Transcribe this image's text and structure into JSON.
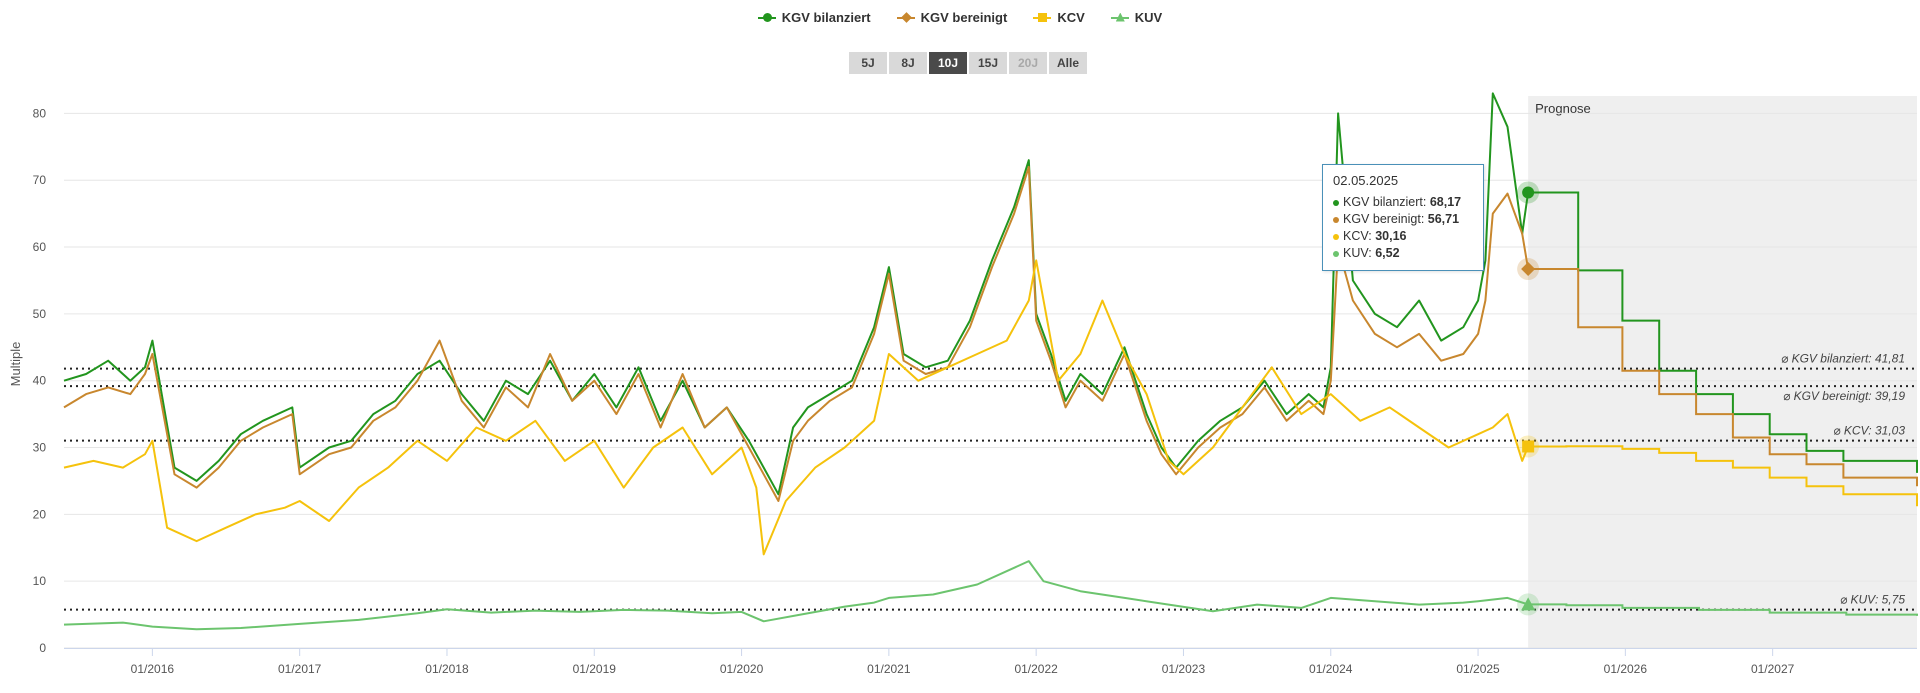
{
  "colors": {
    "kgv_bilanziert": "#22951e",
    "kgv_bereinigt": "#c8872e",
    "kcv": "#f5c20c",
    "kuv": "#6cc46e",
    "forecast_bg": "#efefef",
    "grid": "#e6e6e6"
  },
  "legend": [
    {
      "label": "KGV bilanziert",
      "series": "kgv_bilanziert",
      "marker": "circle"
    },
    {
      "label": "KGV bereinigt",
      "series": "kgv_bereinigt",
      "marker": "diamond"
    },
    {
      "label": "KCV",
      "series": "kcv",
      "marker": "square"
    },
    {
      "label": "KUV",
      "series": "kuv",
      "marker": "triangle"
    }
  ],
  "range_buttons": [
    {
      "label": "5J",
      "state": "normal"
    },
    {
      "label": "8J",
      "state": "normal"
    },
    {
      "label": "10J",
      "state": "active"
    },
    {
      "label": "15J",
      "state": "normal"
    },
    {
      "label": "20J",
      "state": "disabled"
    },
    {
      "label": "Alle",
      "state": "normal"
    }
  ],
  "tooltip": {
    "date": "02.05.2025",
    "rows": [
      {
        "label": "KGV bilanziert: ",
        "value": "68,17",
        "series": "kgv_bilanziert"
      },
      {
        "label": "KGV bereinigt: ",
        "value": "56,71",
        "series": "kgv_bereinigt"
      },
      {
        "label": "KCV: ",
        "value": "30,16",
        "series": "kcv"
      },
      {
        "label": "KUV: ",
        "value": "6,52",
        "series": "kuv"
      }
    ]
  },
  "chart_data": {
    "type": "line",
    "ylabel": "Multiple",
    "ylim": [
      0,
      85
    ],
    "yticks": [
      0,
      10,
      20,
      30,
      40,
      50,
      60,
      70,
      80
    ],
    "xlim": [
      2015.4,
      2027.98
    ],
    "xticks": [
      {
        "x": 2016,
        "label": "01/2016"
      },
      {
        "x": 2017,
        "label": "01/2017"
      },
      {
        "x": 2018,
        "label": "01/2018"
      },
      {
        "x": 2019,
        "label": "01/2019"
      },
      {
        "x": 2020,
        "label": "01/2020"
      },
      {
        "x": 2021,
        "label": "01/2021"
      },
      {
        "x": 2022,
        "label": "01/2022"
      },
      {
        "x": 2023,
        "label": "01/2023"
      },
      {
        "x": 2024,
        "label": "01/2024"
      },
      {
        "x": 2025,
        "label": "01/2025"
      },
      {
        "x": 2026,
        "label": "01/2026"
      },
      {
        "x": 2027,
        "label": "01/2027"
      }
    ],
    "forecast_start": 2025.34,
    "forecast_label": "Prognose",
    "hover_x": 2025.34,
    "series": [
      {
        "key": "kgv_bilanziert",
        "name": "KGV bilanziert",
        "x": [
          2015.4,
          2015.55,
          2015.7,
          2015.85,
          2015.95,
          2016.0,
          2016.15,
          2016.3,
          2016.45,
          2016.6,
          2016.75,
          2016.95,
          2017.0,
          2017.2,
          2017.35,
          2017.5,
          2017.65,
          2017.8,
          2017.95,
          2018.1,
          2018.25,
          2018.4,
          2018.55,
          2018.7,
          2018.85,
          2019.0,
          2019.15,
          2019.3,
          2019.45,
          2019.6,
          2019.75,
          2019.9,
          2020.05,
          2020.15,
          2020.25,
          2020.35,
          2020.45,
          2020.6,
          2020.75,
          2020.9,
          2021.0,
          2021.1,
          2021.25,
          2021.4,
          2021.55,
          2021.7,
          2021.85,
          2021.95,
          2022.0,
          2022.1,
          2022.2,
          2022.3,
          2022.45,
          2022.6,
          2022.75,
          2022.85,
          2022.95,
          2023.1,
          2023.25,
          2023.4,
          2023.55,
          2023.7,
          2023.85,
          2023.95,
          2024.0,
          2024.05,
          2024.15,
          2024.3,
          2024.45,
          2024.6,
          2024.75,
          2024.9,
          2025.0,
          2025.05,
          2025.1,
          2025.2,
          2025.3,
          2025.34
        ],
        "y": [
          40,
          41,
          43,
          40,
          42,
          46,
          27,
          25,
          28,
          32,
          34,
          36,
          27,
          30,
          31,
          35,
          37,
          41,
          43,
          38,
          34,
          40,
          38,
          43,
          37,
          41,
          36,
          42,
          34,
          40,
          33,
          36,
          31,
          27,
          23,
          33,
          36,
          38,
          40,
          48,
          57,
          44,
          42,
          43,
          49,
          58,
          66,
          73,
          50,
          44,
          37,
          41,
          38,
          45,
          35,
          30,
          27,
          31,
          34,
          36,
          40,
          35,
          38,
          36,
          42,
          80,
          55,
          50,
          48,
          52,
          46,
          48,
          52,
          58,
          83,
          78,
          62,
          68.17
        ]
      },
      {
        "key": "kgv_bereinigt",
        "name": "KGV bereinigt",
        "x": [
          2015.4,
          2015.55,
          2015.7,
          2015.85,
          2015.95,
          2016.0,
          2016.15,
          2016.3,
          2016.45,
          2016.6,
          2016.75,
          2016.95,
          2017.0,
          2017.2,
          2017.35,
          2017.5,
          2017.65,
          2017.8,
          2017.95,
          2018.1,
          2018.25,
          2018.4,
          2018.55,
          2018.7,
          2018.85,
          2019.0,
          2019.15,
          2019.3,
          2019.45,
          2019.6,
          2019.75,
          2019.9,
          2020.05,
          2020.15,
          2020.25,
          2020.35,
          2020.45,
          2020.6,
          2020.75,
          2020.9,
          2021.0,
          2021.1,
          2021.25,
          2021.4,
          2021.55,
          2021.7,
          2021.85,
          2021.95,
          2022.0,
          2022.1,
          2022.2,
          2022.3,
          2022.45,
          2022.6,
          2022.75,
          2022.85,
          2022.95,
          2023.1,
          2023.25,
          2023.4,
          2023.55,
          2023.7,
          2023.85,
          2023.95,
          2024.0,
          2024.05,
          2024.15,
          2024.3,
          2024.45,
          2024.6,
          2024.75,
          2024.9,
          2025.0,
          2025.05,
          2025.1,
          2025.2,
          2025.3,
          2025.34
        ],
        "y": [
          36,
          38,
          39,
          38,
          41,
          44,
          26,
          24,
          27,
          31,
          33,
          35,
          26,
          29,
          30,
          34,
          36,
          40,
          46,
          37,
          33,
          39,
          36,
          44,
          37,
          40,
          35,
          41,
          33,
          41,
          33,
          36,
          30,
          26,
          22,
          31,
          34,
          37,
          39,
          47,
          56,
          43,
          41,
          42,
          48,
          57,
          65,
          72,
          49,
          43,
          36,
          40,
          37,
          44,
          34,
          29,
          26,
          30,
          33,
          35,
          39,
          34,
          37,
          35,
          40,
          60,
          52,
          47,
          45,
          47,
          43,
          44,
          47,
          52,
          65,
          68,
          62,
          56.71
        ]
      },
      {
        "key": "kcv",
        "name": "KCV",
        "x": [
          2015.4,
          2015.6,
          2015.8,
          2015.95,
          2016.0,
          2016.1,
          2016.3,
          2016.5,
          2016.7,
          2016.9,
          2017.0,
          2017.2,
          2017.4,
          2017.6,
          2017.8,
          2018.0,
          2018.2,
          2018.4,
          2018.6,
          2018.8,
          2019.0,
          2019.2,
          2019.4,
          2019.6,
          2019.8,
          2020.0,
          2020.1,
          2020.15,
          2020.3,
          2020.5,
          2020.7,
          2020.9,
          2021.0,
          2021.2,
          2021.4,
          2021.6,
          2021.8,
          2021.95,
          2022.0,
          2022.15,
          2022.3,
          2022.45,
          2022.6,
          2022.75,
          2022.9,
          2023.0,
          2023.2,
          2023.4,
          2023.6,
          2023.8,
          2024.0,
          2024.2,
          2024.4,
          2024.6,
          2024.8,
          2025.0,
          2025.1,
          2025.2,
          2025.3,
          2025.34
        ],
        "y": [
          27,
          28,
          27,
          29,
          31,
          18,
          16,
          18,
          20,
          21,
          22,
          19,
          24,
          27,
          31,
          28,
          33,
          31,
          34,
          28,
          31,
          24,
          30,
          33,
          26,
          30,
          24,
          14,
          22,
          27,
          30,
          34,
          44,
          40,
          42,
          44,
          46,
          52,
          58,
          40,
          44,
          52,
          44,
          38,
          28,
          26,
          30,
          36,
          42,
          35,
          38,
          34,
          36,
          33,
          30,
          32,
          33,
          35,
          28,
          30.16
        ]
      },
      {
        "key": "kuv",
        "name": "KUV",
        "x": [
          2015.4,
          2015.8,
          2016.0,
          2016.3,
          2016.6,
          2017.0,
          2017.4,
          2017.8,
          2018.0,
          2018.3,
          2018.6,
          2018.9,
          2019.2,
          2019.5,
          2019.8,
          2020.0,
          2020.15,
          2020.4,
          2020.7,
          2020.9,
          2021.0,
          2021.3,
          2021.6,
          2021.85,
          2021.95,
          2022.05,
          2022.3,
          2022.6,
          2022.9,
          2023.2,
          2023.5,
          2023.8,
          2024.0,
          2024.3,
          2024.6,
          2024.9,
          2025.0,
          2025.2,
          2025.34
        ],
        "y": [
          3.5,
          3.8,
          3.2,
          2.8,
          3.0,
          3.6,
          4.2,
          5.2,
          5.8,
          5.3,
          5.6,
          5.4,
          5.7,
          5.6,
          5.2,
          5.4,
          4.0,
          5.0,
          6.2,
          6.8,
          7.5,
          8.0,
          9.5,
          12.0,
          13.0,
          10.0,
          8.5,
          7.5,
          6.5,
          5.5,
          6.5,
          6.0,
          7.5,
          7.0,
          6.5,
          6.8,
          7.0,
          7.5,
          6.52
        ]
      }
    ],
    "forecast": [
      {
        "key": "kgv_bilanziert",
        "x": [
          2025.34,
          2025.5,
          2025.68,
          2025.98,
          2026.23,
          2026.48,
          2026.73,
          2026.98,
          2027.23,
          2027.48,
          2027.98
        ],
        "y": [
          68.17,
          68.17,
          56.5,
          49.0,
          41.5,
          38.0,
          35.0,
          32.0,
          29.5,
          28.0,
          26.2
        ]
      },
      {
        "key": "kgv_bereinigt",
        "x": [
          2025.34,
          2025.5,
          2025.68,
          2025.98,
          2026.23,
          2026.48,
          2026.73,
          2026.98,
          2027.23,
          2027.48,
          2027.98
        ],
        "y": [
          56.71,
          56.71,
          48.0,
          41.5,
          38.0,
          35.0,
          31.5,
          29.0,
          27.5,
          25.5,
          24.2
        ]
      },
      {
        "key": "kcv",
        "x": [
          2025.34,
          2025.6,
          2025.98,
          2026.23,
          2026.48,
          2026.73,
          2026.98,
          2027.23,
          2027.48,
          2027.98
        ],
        "y": [
          30.16,
          30.2,
          29.8,
          29.2,
          28.0,
          27.0,
          25.5,
          24.2,
          23.0,
          21.2
        ]
      },
      {
        "key": "kuv",
        "x": [
          2025.34,
          2025.6,
          2025.98,
          2026.5,
          2026.98,
          2027.5,
          2027.98
        ],
        "y": [
          6.52,
          6.4,
          6.0,
          5.7,
          5.3,
          5.0,
          4.8
        ]
      }
    ],
    "averages": [
      {
        "key": "kgv_bilanziert",
        "value": 41.81,
        "label": "⌀ KGV bilanziert: 41,81"
      },
      {
        "key": "kgv_bereinigt",
        "value": 39.19,
        "label": "⌀ KGV bereinigt: 39,19"
      },
      {
        "key": "kcv",
        "value": 31.03,
        "label": "⌀ KCV: 31,03"
      },
      {
        "key": "kuv",
        "value": 5.75,
        "label": "⌀ KUV: 5,75"
      }
    ]
  }
}
